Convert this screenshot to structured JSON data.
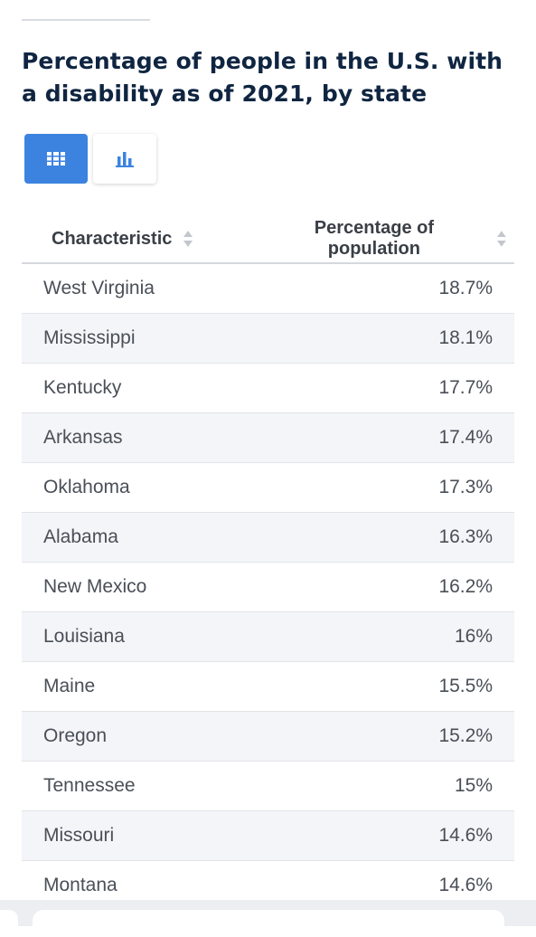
{
  "page": {
    "title": "Percentage of people in the U.S. with a disability as of 2021, by state"
  },
  "view_toggle": {
    "options": [
      {
        "icon": "table-grid-icon",
        "active": true
      },
      {
        "icon": "bar-chart-icon",
        "active": false
      }
    ],
    "active_color": "#3c83e0",
    "icon_color": "#3c83e0"
  },
  "table": {
    "columns": [
      "Characteristic",
      "Percentage of population"
    ],
    "rows": [
      {
        "state": "West Virginia",
        "value": "18.7%"
      },
      {
        "state": "Mississippi",
        "value": "18.1%"
      },
      {
        "state": "Kentucky",
        "value": "17.7%"
      },
      {
        "state": "Arkansas",
        "value": "17.4%"
      },
      {
        "state": "Oklahoma",
        "value": "17.3%"
      },
      {
        "state": "Alabama",
        "value": "16.3%"
      },
      {
        "state": "New Mexico",
        "value": "16.2%"
      },
      {
        "state": "Louisiana",
        "value": "16%"
      },
      {
        "state": "Maine",
        "value": "15.5%"
      },
      {
        "state": "Oregon",
        "value": "15.2%"
      },
      {
        "state": "Tennessee",
        "value": "15%"
      },
      {
        "state": "Missouri",
        "value": "14.6%"
      },
      {
        "state": "Montana",
        "value": "14.6%"
      }
    ]
  },
  "chart_data": {
    "type": "table",
    "title": "Percentage of people in the U.S. with a disability as of 2021, by state",
    "columns": [
      "Characteristic",
      "Percentage of population"
    ],
    "categories": [
      "West Virginia",
      "Mississippi",
      "Kentucky",
      "Arkansas",
      "Oklahoma",
      "Alabama",
      "New Mexico",
      "Louisiana",
      "Maine",
      "Oregon",
      "Tennessee",
      "Missouri",
      "Montana"
    ],
    "values": [
      18.7,
      18.1,
      17.7,
      17.4,
      17.3,
      16.3,
      16.2,
      16,
      15.5,
      15.2,
      15,
      14.6,
      14.6
    ]
  }
}
